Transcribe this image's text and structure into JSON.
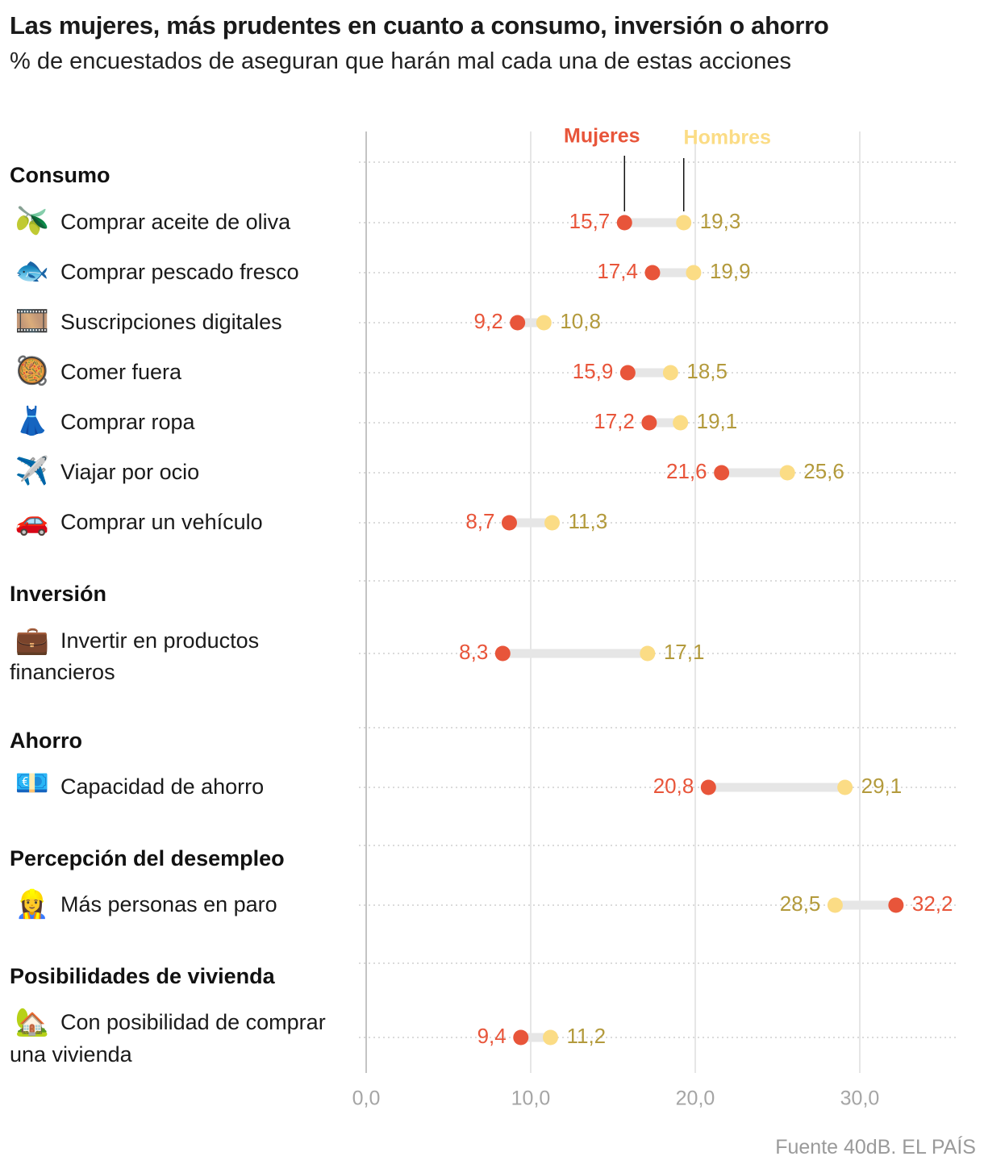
{
  "title": "Las mujeres, más prudentes en cuanto a consumo, inversión o ahorro",
  "subtitle": "% de encuestados de aseguran que harán mal cada una de estas acciones",
  "source": "Fuente 40dB. EL PAÍS",
  "colors": {
    "mujeres": "#e8553a",
    "hombres": "#fbdc85",
    "hombres_text": "#b39a3c",
    "connector": "#e6e6e6",
    "grid": "#dddddd",
    "dotted": "#cfcfcf"
  },
  "chart_data": {
    "type": "dumbbell",
    "title": "Las mujeres, más prudentes en cuanto a consumo, inversión o ahorro",
    "xlim": [
      0,
      36
    ],
    "xticks": [
      0,
      10,
      20,
      30
    ],
    "xtick_labels": [
      "0,0",
      "10,0",
      "20,0",
      "30,0"
    ],
    "legend": {
      "mujeres": "Mujeres",
      "hombres": "Hombres"
    },
    "series": [
      {
        "name": "Mujeres",
        "color": "#e8553a"
      },
      {
        "name": "Hombres",
        "color": "#fbdc85"
      }
    ],
    "groups": [
      {
        "name": "Consumo",
        "rows": [
          {
            "icon": "olive-icon",
            "emoji": "🫒",
            "label": [
              "Comprar aceite de oliva"
            ],
            "mujeres": 15.7,
            "hombres": 19.3,
            "mujeres_label": "15,7",
            "hombres_label": "19,3"
          },
          {
            "icon": "fish-icon",
            "emoji": "🐟",
            "label": [
              "Comprar pescado fresco"
            ],
            "mujeres": 17.4,
            "hombres": 19.9,
            "mujeres_label": "17,4",
            "hombres_label": "19,9"
          },
          {
            "icon": "film-icon",
            "emoji": "🎞️",
            "label": [
              "Suscripciones digitales"
            ],
            "mujeres": 9.2,
            "hombres": 10.8,
            "mujeres_label": "9,2",
            "hombres_label": "10,8"
          },
          {
            "icon": "paella-icon",
            "emoji": "🥘",
            "label": [
              "Comer fuera"
            ],
            "mujeres": 15.9,
            "hombres": 18.5,
            "mujeres_label": "15,9",
            "hombres_label": "18,5"
          },
          {
            "icon": "dress-icon",
            "emoji": "👗",
            "label": [
              "Comprar ropa"
            ],
            "mujeres": 17.2,
            "hombres": 19.1,
            "mujeres_label": "17,2",
            "hombres_label": "19,1"
          },
          {
            "icon": "airplane-icon",
            "emoji": "✈️",
            "label": [
              "Viajar por ocio"
            ],
            "mujeres": 21.6,
            "hombres": 25.6,
            "mujeres_label": "21,6",
            "hombres_label": "25,6"
          },
          {
            "icon": "car-icon",
            "emoji": "🚗",
            "label": [
              "Comprar un vehículo"
            ],
            "mujeres": 8.7,
            "hombres": 11.3,
            "mujeres_label": "8,7",
            "hombres_label": "11,3"
          }
        ]
      },
      {
        "name": "Inversión",
        "rows": [
          {
            "icon": "briefcase-icon",
            "emoji": "💼",
            "label": [
              "Invertir en productos",
              "financieros"
            ],
            "mujeres": 8.3,
            "hombres": 17.1,
            "mujeres_label": "8,3",
            "hombres_label": "17,1"
          }
        ]
      },
      {
        "name": "Ahorro",
        "rows": [
          {
            "icon": "euro-banknote-icon",
            "emoji": "💶",
            "label": [
              "Capacidad de ahorro"
            ],
            "mujeres": 20.8,
            "hombres": 29.1,
            "mujeres_label": "20,8",
            "hombres_label": "29,1"
          }
        ]
      },
      {
        "name": "Percepción del desempleo",
        "rows": [
          {
            "icon": "worker-icon",
            "emoji": "👷‍♀️",
            "label": [
              "Más personas en paro"
            ],
            "mujeres": 32.2,
            "hombres": 28.5,
            "mujeres_label": "32,2",
            "hombres_label": "28,5"
          }
        ]
      },
      {
        "name": "Posibilidades de vivienda",
        "rows": [
          {
            "icon": "house-icon",
            "emoji": "🏡",
            "label": [
              "Con posibilidad de comprar",
              "una vivienda"
            ],
            "mujeres": 9.4,
            "hombres": 11.2,
            "mujeres_label": "9,4",
            "hombres_label": "11,2"
          }
        ]
      }
    ]
  }
}
